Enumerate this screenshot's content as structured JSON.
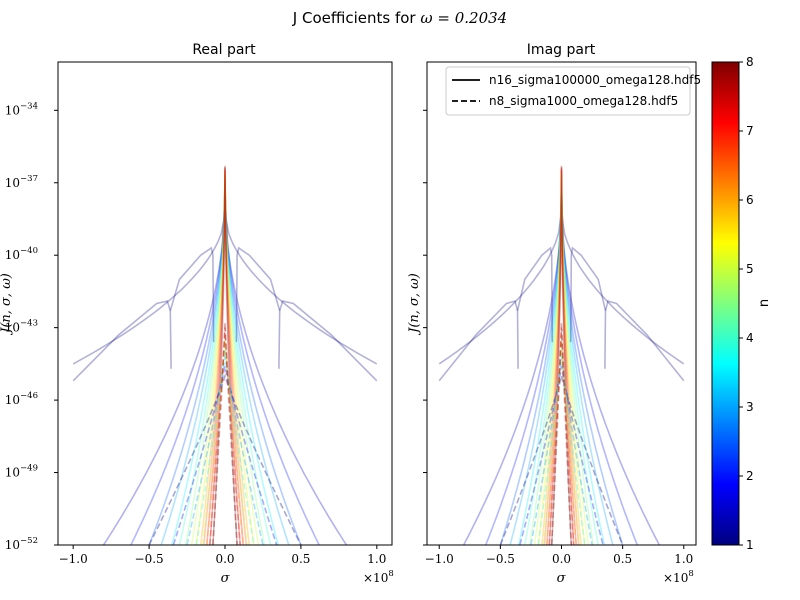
{
  "figure": {
    "title_prefix": "J Coefficients for ",
    "title_math": "ω = 0.2034"
  },
  "chart_data": [
    {
      "type": "line",
      "panel": "left",
      "title": "Real part",
      "xlabel": "σ",
      "ylabel": "J(n, σ, ω)",
      "x_offset_label": "×10",
      "x_offset_exp": "8",
      "xlim": [
        -1.1,
        1.1
      ],
      "ylim_log10": [
        -52,
        -32
      ],
      "yscale": "log",
      "xticks": [
        -1.0,
        -0.5,
        0.0,
        0.5,
        1.0
      ],
      "xtick_labels": [
        "−1.0",
        "−0.5",
        "0.0",
        "0.5",
        "1.0"
      ],
      "yticks_exp": [
        -52,
        -49,
        -46,
        -43,
        -40,
        -37,
        -34
      ],
      "ytick_base": "10",
      "ytick_labels": [
        "−52",
        "−49",
        "−46",
        "−43",
        "−40",
        "−37",
        "−34"
      ],
      "grid": false
    },
    {
      "type": "line",
      "panel": "right",
      "title": "Imag part",
      "xlabel": "σ",
      "ylabel": "J(n, σ, ω)",
      "x_offset_label": "×10",
      "x_offset_exp": "8",
      "xlim": [
        -1.1,
        1.1
      ],
      "ylim_log10": [
        -52,
        -32
      ],
      "yscale": "log",
      "xticks": [
        -1.0,
        -0.5,
        0.0,
        0.5,
        1.0
      ],
      "xtick_labels": [
        "−1.0",
        "−0.5",
        "0.0",
        "0.5",
        "1.0"
      ],
      "yticks_exp": [
        -52,
        -49,
        -46,
        -43,
        -40,
        -37,
        -34
      ],
      "ytick_labels": [],
      "grid": false,
      "legend": {
        "placement": "top-right",
        "entries": [
          {
            "label": "n16_sigma100000_omega128.hdf5",
            "style": "solid"
          },
          {
            "label": "n8_sigma1000_omega128.hdf5",
            "style": "dashed"
          }
        ]
      }
    }
  ],
  "series_families": {
    "solid": {
      "file": "n16_sigma100000_omega128.hdf5",
      "n_values": [
        1,
        1.5,
        2,
        2.5,
        3,
        3.5,
        4,
        4.5,
        5,
        5.5,
        6,
        6.5,
        7,
        7.5,
        8
      ],
      "peak_log10": [
        -38.3,
        -37.9,
        -37.6,
        -37.4,
        -37.2,
        -37.0,
        -36.9,
        -36.8,
        -36.7,
        -36.6,
        -36.5,
        -36.45,
        -36.4,
        -36.35,
        -36.3
      ],
      "halfwidth_1e8": [
        1.0,
        0.8,
        0.62,
        0.5,
        0.42,
        0.35,
        0.3,
        0.26,
        0.22,
        0.19,
        0.16,
        0.14,
        0.12,
        0.1,
        0.08
      ],
      "edge_log10": [
        -44.5,
        -52,
        -52,
        -52,
        -52,
        -52,
        -52,
        -52,
        -52,
        -52,
        -52,
        -52,
        -52,
        -52,
        -52
      ]
    },
    "dashed": {
      "file": "n8_sigma1000_omega128.hdf5",
      "n_values": [
        1,
        2,
        3,
        4,
        5,
        6,
        7,
        8
      ],
      "peak_log10": [
        -45.0,
        -44.6,
        -44.2,
        -43.9,
        -43.6,
        -43.3,
        -43.0,
        -42.8
      ],
      "halfwidth_1e8": [
        0.5,
        0.34,
        0.25,
        0.19,
        0.15,
        0.12,
        0.1,
        0.08
      ]
    }
  },
  "colorbar": {
    "label": "n",
    "min": 1,
    "max": 8,
    "ticks": [
      "1",
      "2",
      "3",
      "4",
      "5",
      "6",
      "7",
      "8"
    ],
    "colormap": "jet",
    "colors": [
      "#00007f",
      "#0000ff",
      "#007fff",
      "#00ffff",
      "#7fff7f",
      "#ffff00",
      "#ff7f00",
      "#ff0000",
      "#7f0000"
    ]
  }
}
